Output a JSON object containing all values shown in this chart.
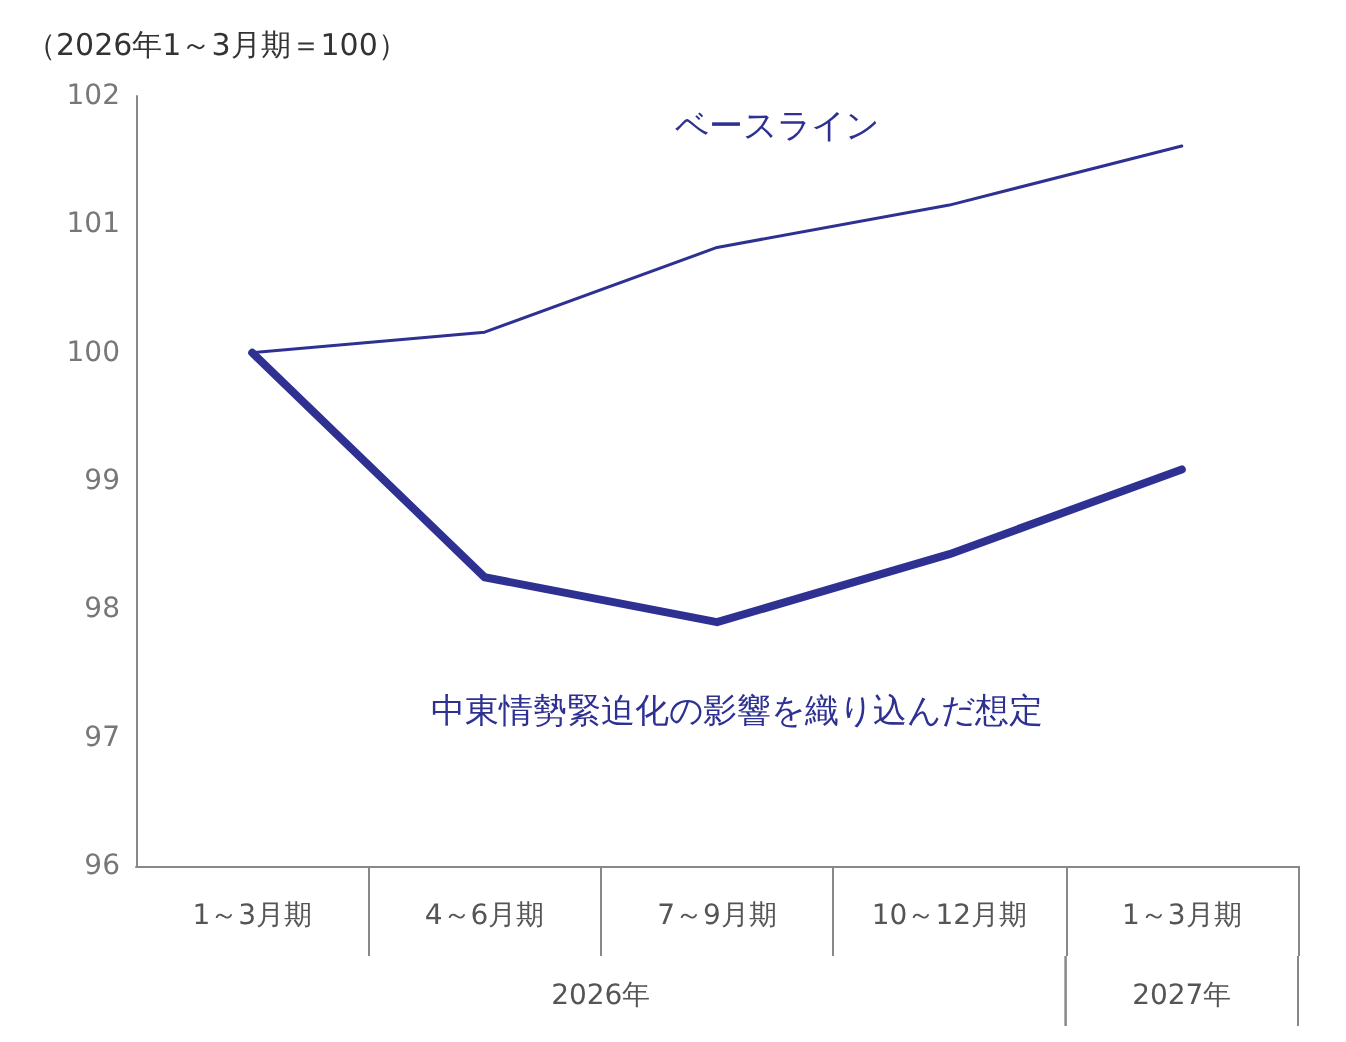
{
  "chart_data": {
    "type": "line",
    "ylabel": "（2026年1～3月期＝100）",
    "categories": [
      "1～3月期",
      "4～6月期",
      "7～9月期",
      "10～12月期",
      "1～3月期"
    ],
    "series": [
      {
        "name": "ベースライン",
        "color": "#2e3192",
        "values": [
          100,
          100.16,
          100.82,
          101.15,
          101.61
        ]
      },
      {
        "name": "中東情勢緊迫化の影響を織り込んだ想定",
        "color": "#2e3192",
        "values": [
          100,
          98.25,
          97.9,
          98.43,
          99.09
        ]
      }
    ],
    "ylim": [
      96,
      102
    ],
    "yticks": [
      96,
      97,
      98,
      99,
      100,
      101,
      102
    ],
    "grid": false,
    "legend": false,
    "marker": "none",
    "annotations": [
      "2026年",
      "2027年"
    ]
  }
}
